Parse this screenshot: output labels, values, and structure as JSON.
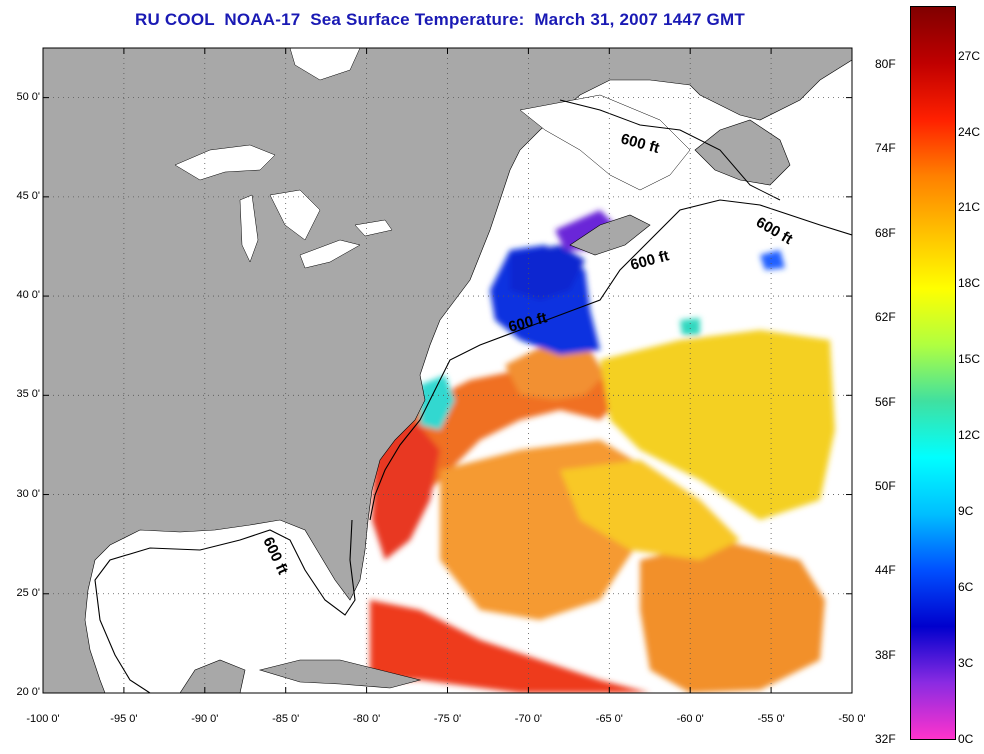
{
  "title": "RU COOL  NOAA-17  Sea Surface Temperature:  March 31, 2007 1447 GMT",
  "map": {
    "lon_range": [
      -100,
      -50
    ],
    "lat_range": [
      20,
      52.5
    ],
    "lat_ticks": [
      "20 0'",
      "25 0'",
      "30 0'",
      "35 0'",
      "40 0'",
      "45 0'",
      "50 0'"
    ],
    "lon_ticks": [
      "-100 0'",
      "-95 0'",
      "-90 0'",
      "-85 0'",
      "-80 0'",
      "-75 0'",
      "-70 0'",
      "-65 0'",
      "-60 0'",
      "-55 0'",
      "-50 0'"
    ],
    "contour_label": "600 ft",
    "colors": {
      "land": "#a8a8a8",
      "ocean_nodata": "#ffffff",
      "gridline": "#555555"
    }
  },
  "colorbar": {
    "fahrenheit_labels": [
      "32F",
      "38F",
      "44F",
      "50F",
      "56F",
      "62F",
      "68F",
      "74F",
      "80F"
    ],
    "celsius_labels": [
      "0C",
      "3C",
      "6C",
      "9C",
      "12C",
      "15C",
      "18C",
      "21C",
      "24C",
      "27C"
    ],
    "range_c": [
      0,
      29
    ],
    "colors": [
      "#ff33cc",
      "#8a2be2",
      "#0000cd",
      "#0050ff",
      "#00bfff",
      "#00ffff",
      "#40e0a0",
      "#b0ff40",
      "#ffff00",
      "#ffc000",
      "#ff8000",
      "#ff2000",
      "#c00000",
      "#800000"
    ]
  }
}
